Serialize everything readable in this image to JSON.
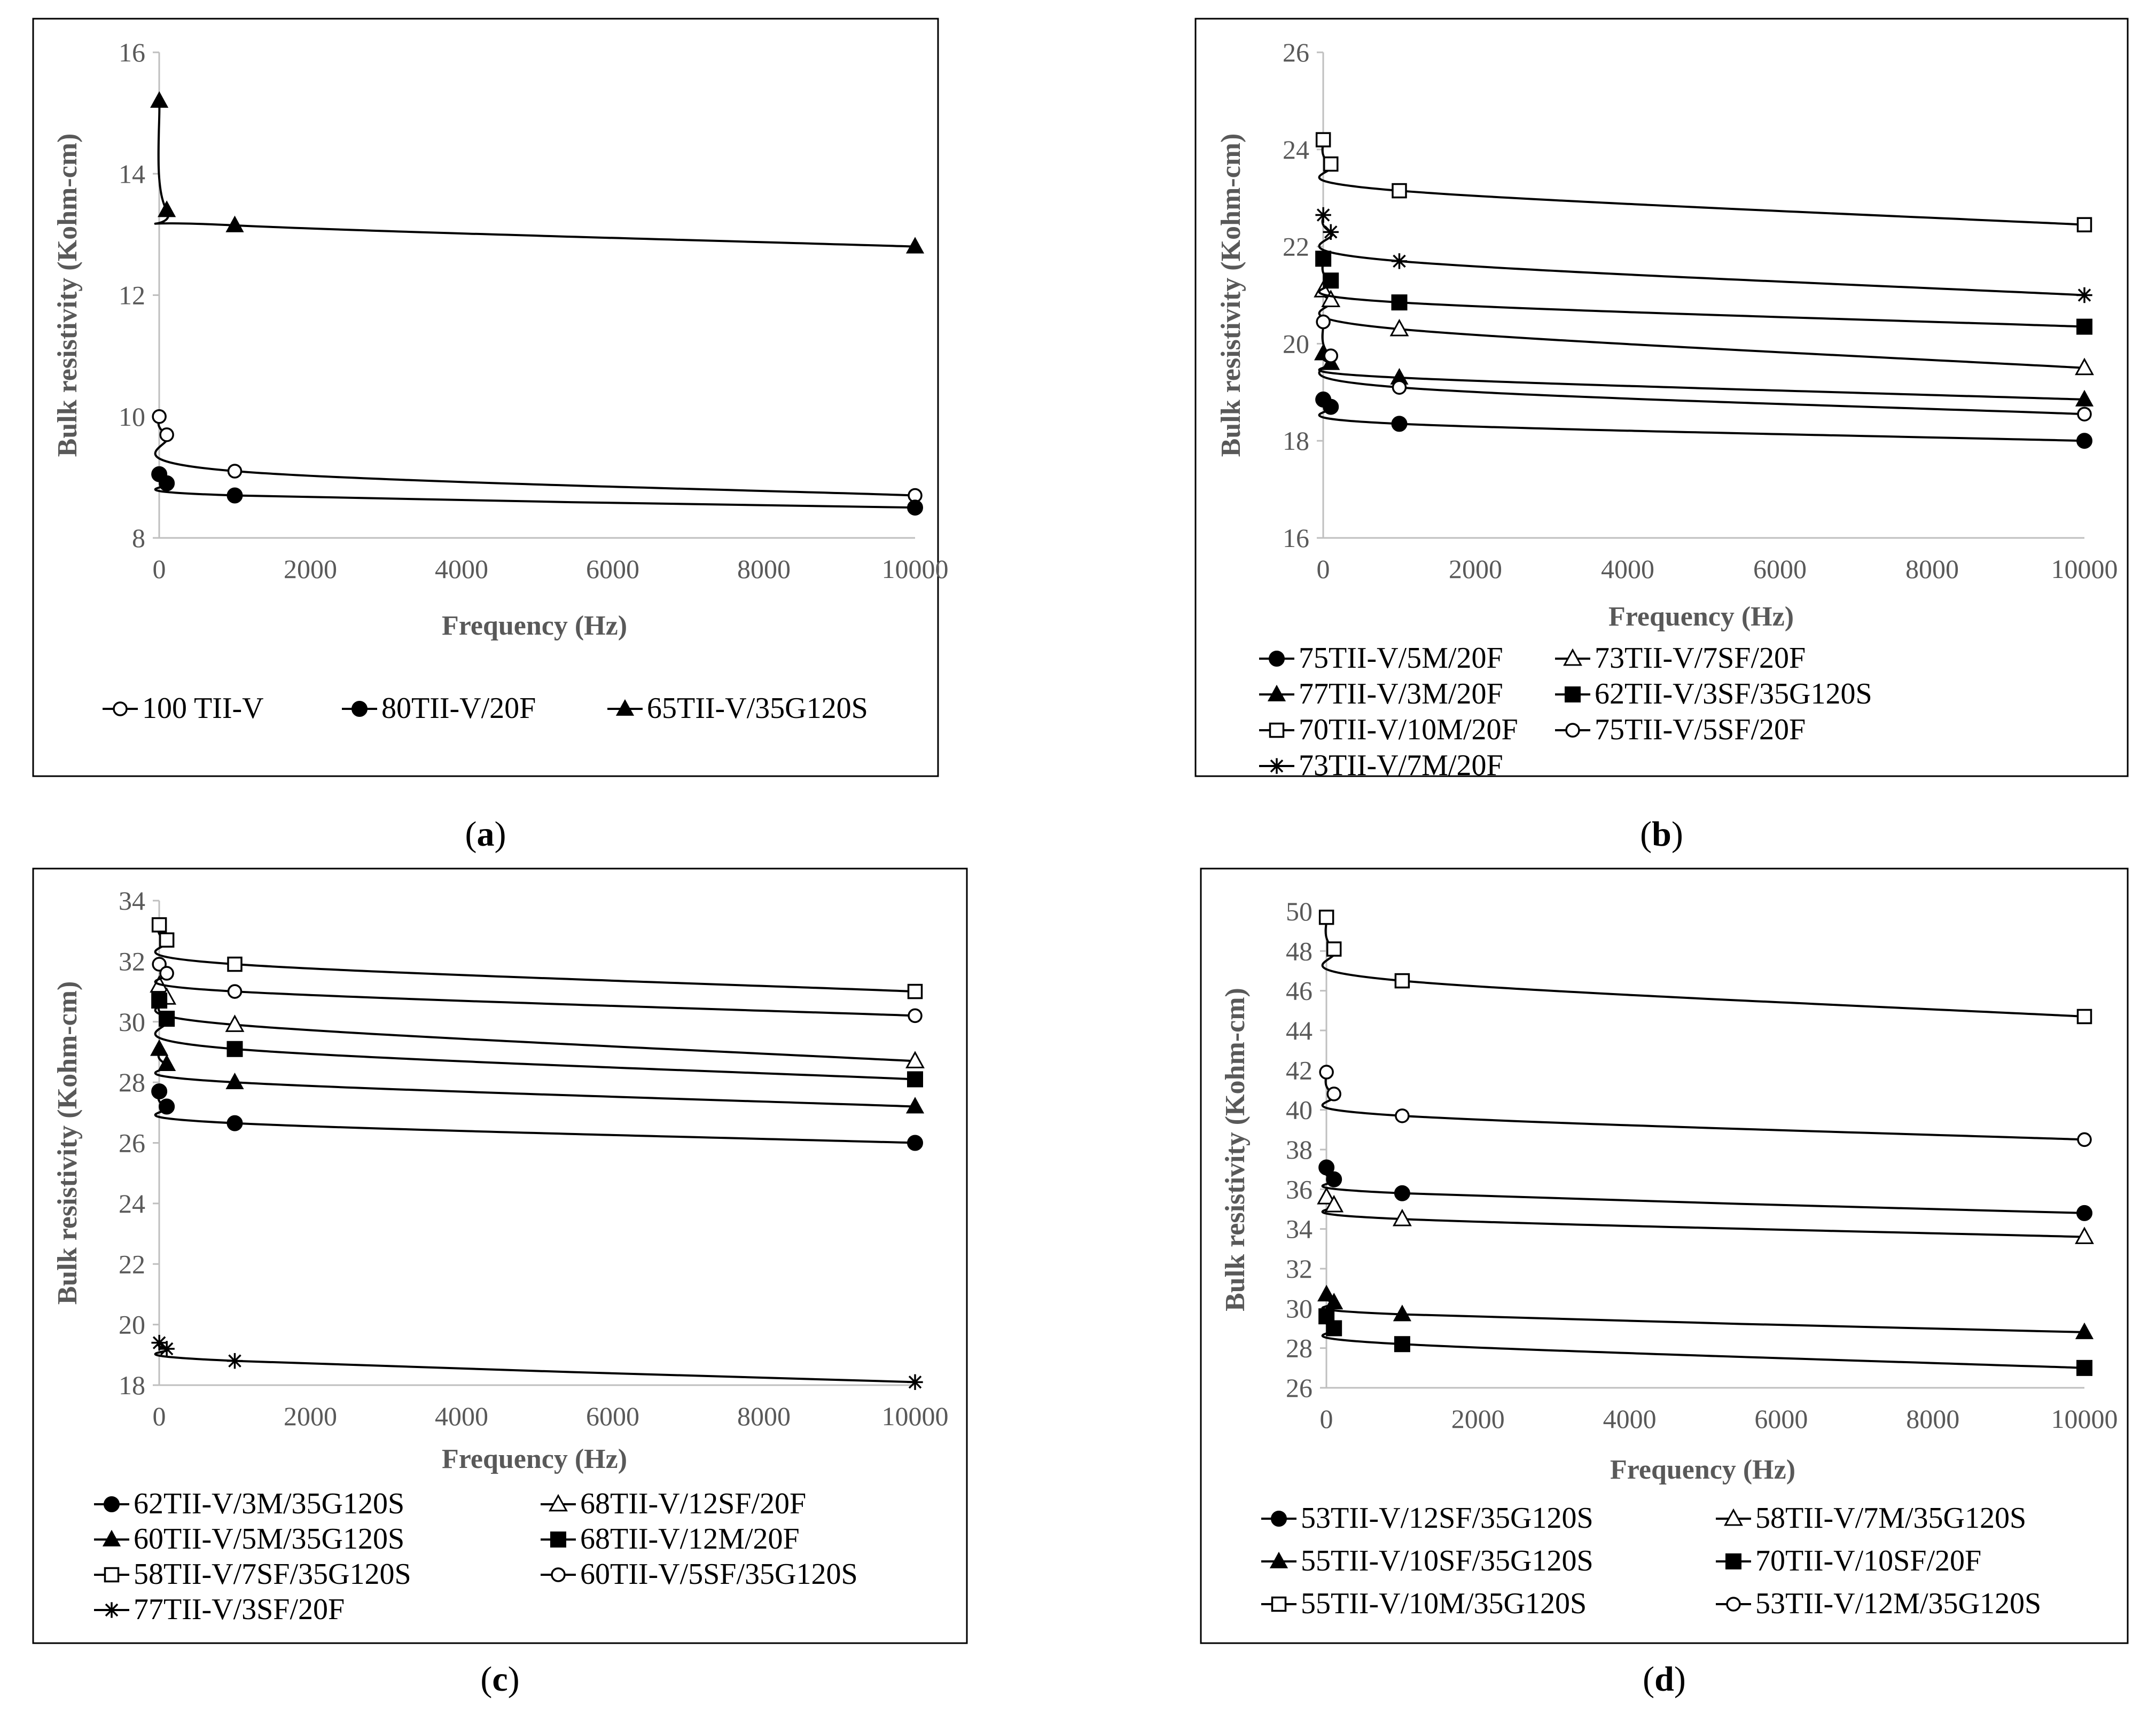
{
  "chart_data": [
    {
      "type": "line",
      "label": "a",
      "title": "",
      "xlabel": "Frequency (Hz)",
      "ylabel": "Bulk resistivity (Kohm-cm)",
      "xlim": [
        0,
        10000
      ],
      "ylim": [
        8,
        16
      ],
      "xticks": [
        0,
        2000,
        4000,
        6000,
        8000,
        10000
      ],
      "yticks": [
        8,
        10,
        12,
        14,
        16
      ],
      "x": [
        1,
        100,
        1000,
        10000
      ],
      "legend_position": "bottom",
      "series": [
        {
          "name": "100 TII-V",
          "marker": "circle-open",
          "values": [
            10.0,
            9.7,
            9.1,
            8.7
          ]
        },
        {
          "name": "80TII-V/20F",
          "marker": "circle-filled",
          "values": [
            9.05,
            8.9,
            8.7,
            8.5
          ]
        },
        {
          "name": "65TII-V/35G120S",
          "marker": "triangle-filled",
          "values": [
            15.2,
            13.4,
            13.15,
            12.8
          ]
        }
      ]
    },
    {
      "type": "line",
      "label": "b",
      "title": "",
      "xlabel": "Frequency (Hz)",
      "ylabel": "Bulk resistivity (Kohm-cm)",
      "xlim": [
        0,
        10000
      ],
      "ylim": [
        16,
        26
      ],
      "xticks": [
        0,
        2000,
        4000,
        6000,
        8000,
        10000
      ],
      "yticks": [
        16,
        18,
        20,
        22,
        24,
        26
      ],
      "x": [
        1,
        100,
        1000,
        10000
      ],
      "legend_position": "bottom",
      "series": [
        {
          "name": "75TII-V/5M/20F",
          "marker": "circle-filled",
          "values": [
            18.85,
            18.7,
            18.35,
            18.0
          ]
        },
        {
          "name": "73TII-V/7SF/20F",
          "marker": "triangle-open",
          "values": [
            21.1,
            20.9,
            20.3,
            19.5
          ]
        },
        {
          "name": "77TII-V/3M/20F",
          "marker": "triangle-filled",
          "values": [
            19.8,
            19.6,
            19.3,
            18.85
          ]
        },
        {
          "name": "62TII-V/3SF/35G120S",
          "marker": "square-filled",
          "values": [
            21.75,
            21.3,
            20.85,
            20.35
          ]
        },
        {
          "name": "70TII-V/10M/20F",
          "marker": "square-open",
          "values": [
            24.2,
            23.7,
            23.15,
            22.45
          ]
        },
        {
          "name": "75TII-V/5SF/20F",
          "marker": "circle-open",
          "values": [
            20.45,
            19.75,
            19.1,
            18.55
          ]
        },
        {
          "name": "73TII-V/7M/20F",
          "marker": "star",
          "values": [
            22.65,
            22.3,
            21.7,
            21.0
          ]
        }
      ]
    },
    {
      "type": "line",
      "label": "c",
      "title": "",
      "xlabel": "Frequency (Hz)",
      "ylabel": "Bulk resistivity (Kohm-cm)",
      "xlim": [
        0,
        10000
      ],
      "ylim": [
        18,
        34
      ],
      "xticks": [
        0,
        2000,
        4000,
        6000,
        8000,
        10000
      ],
      "yticks": [
        18,
        20,
        22,
        24,
        26,
        28,
        30,
        32,
        34
      ],
      "x": [
        1,
        100,
        1000,
        10000
      ],
      "legend_position": "bottom",
      "series": [
        {
          "name": "62TII-V/3M/35G120S",
          "marker": "circle-filled",
          "values": [
            27.7,
            27.2,
            26.65,
            26.0
          ]
        },
        {
          "name": "68TII-V/12SF/20F",
          "marker": "triangle-open",
          "values": [
            31.2,
            30.8,
            29.9,
            28.7
          ]
        },
        {
          "name": "60TII-V/5M/35G120S",
          "marker": "triangle-filled",
          "values": [
            29.1,
            28.6,
            28.0,
            27.2
          ]
        },
        {
          "name": "68TII-V/12M/20F",
          "marker": "square-filled",
          "values": [
            30.7,
            30.1,
            29.1,
            28.1
          ]
        },
        {
          "name": "58TII-V/7SF/35G120S",
          "marker": "square-open",
          "values": [
            33.2,
            32.7,
            31.9,
            31.0
          ]
        },
        {
          "name": "60TII-V/5SF/35G120S",
          "marker": "circle-open",
          "values": [
            31.9,
            31.6,
            31.0,
            30.2
          ]
        },
        {
          "name": "77TII-V/3SF/20F",
          "marker": "star",
          "values": [
            19.4,
            19.2,
            18.8,
            18.1
          ]
        }
      ]
    },
    {
      "type": "line",
      "label": "d",
      "title": "",
      "xlabel": "Frequency (Hz)",
      "ylabel": "Bulk resistivity (Kohm-cm)",
      "xlim": [
        0,
        10000
      ],
      "ylim": [
        26,
        50
      ],
      "xticks": [
        0,
        2000,
        4000,
        6000,
        8000,
        10000
      ],
      "yticks": [
        26,
        28,
        30,
        32,
        34,
        36,
        38,
        40,
        42,
        44,
        46,
        48,
        50
      ],
      "x": [
        1,
        100,
        1000,
        10000
      ],
      "legend_position": "bottom",
      "series": [
        {
          "name": "53TII-V/12SF/35G120S",
          "marker": "circle-filled",
          "values": [
            37.1,
            36.5,
            35.8,
            34.8
          ]
        },
        {
          "name": "58TII-V/7M/35G120S",
          "marker": "triangle-open",
          "values": [
            35.6,
            35.2,
            34.5,
            33.6
          ]
        },
        {
          "name": "55TII-V/10SF/35G120S",
          "marker": "triangle-filled",
          "values": [
            30.7,
            30.3,
            29.7,
            28.8
          ]
        },
        {
          "name": "70TII-V/10SF/20F",
          "marker": "square-filled",
          "values": [
            29.6,
            29.0,
            28.2,
            27.0
          ]
        },
        {
          "name": "55TII-V/10M/35G120S",
          "marker": "square-open",
          "values": [
            49.7,
            48.1,
            46.5,
            44.7
          ]
        },
        {
          "name": "53TII-V/12M/35G120S",
          "marker": "circle-open",
          "values": [
            41.9,
            40.8,
            39.7,
            38.5
          ]
        }
      ]
    }
  ]
}
